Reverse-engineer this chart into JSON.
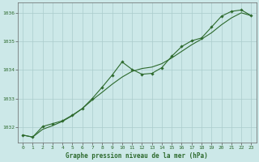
{
  "title": "Graphe pression niveau de la mer (hPa)",
  "bg_color": "#cce8e8",
  "grid_color": "#aacccc",
  "line_color": "#2d6a2d",
  "marker_color": "#2d6a2d",
  "xlim": [
    -0.5,
    23.5
  ],
  "ylim": [
    1031.45,
    1036.35
  ],
  "yticks": [
    1032,
    1033,
    1034,
    1035,
    1036
  ],
  "xticks": [
    0,
    1,
    2,
    3,
    4,
    5,
    6,
    7,
    8,
    9,
    10,
    11,
    12,
    13,
    14,
    15,
    16,
    17,
    18,
    19,
    20,
    21,
    22,
    23
  ],
  "series1_x": [
    0,
    1,
    2,
    3,
    4,
    5,
    6,
    7,
    8,
    9,
    10,
    11,
    12,
    13,
    14,
    15,
    16,
    17,
    18,
    19,
    20,
    21,
    22,
    23
  ],
  "series1_y": [
    1031.72,
    1031.65,
    1032.02,
    1032.12,
    1032.22,
    1032.42,
    1032.65,
    1033.0,
    1033.4,
    1033.82,
    1034.28,
    1034.02,
    1033.85,
    1033.88,
    1034.08,
    1034.48,
    1034.82,
    1035.02,
    1035.12,
    1035.5,
    1035.88,
    1036.05,
    1036.1,
    1035.9
  ],
  "smooth2_x": [
    0,
    1,
    2,
    3,
    4,
    5,
    6,
    7,
    8,
    9,
    10,
    11,
    12,
    13,
    14,
    15,
    16,
    17,
    18,
    19,
    20,
    21,
    22,
    23
  ],
  "smooth2_y": [
    1031.72,
    1031.65,
    1031.92,
    1032.05,
    1032.2,
    1032.4,
    1032.65,
    1032.95,
    1033.22,
    1033.5,
    1033.75,
    1033.95,
    1034.05,
    1034.1,
    1034.22,
    1034.42,
    1034.65,
    1034.88,
    1035.08,
    1035.3,
    1035.58,
    1035.82,
    1036.0,
    1035.9
  ]
}
